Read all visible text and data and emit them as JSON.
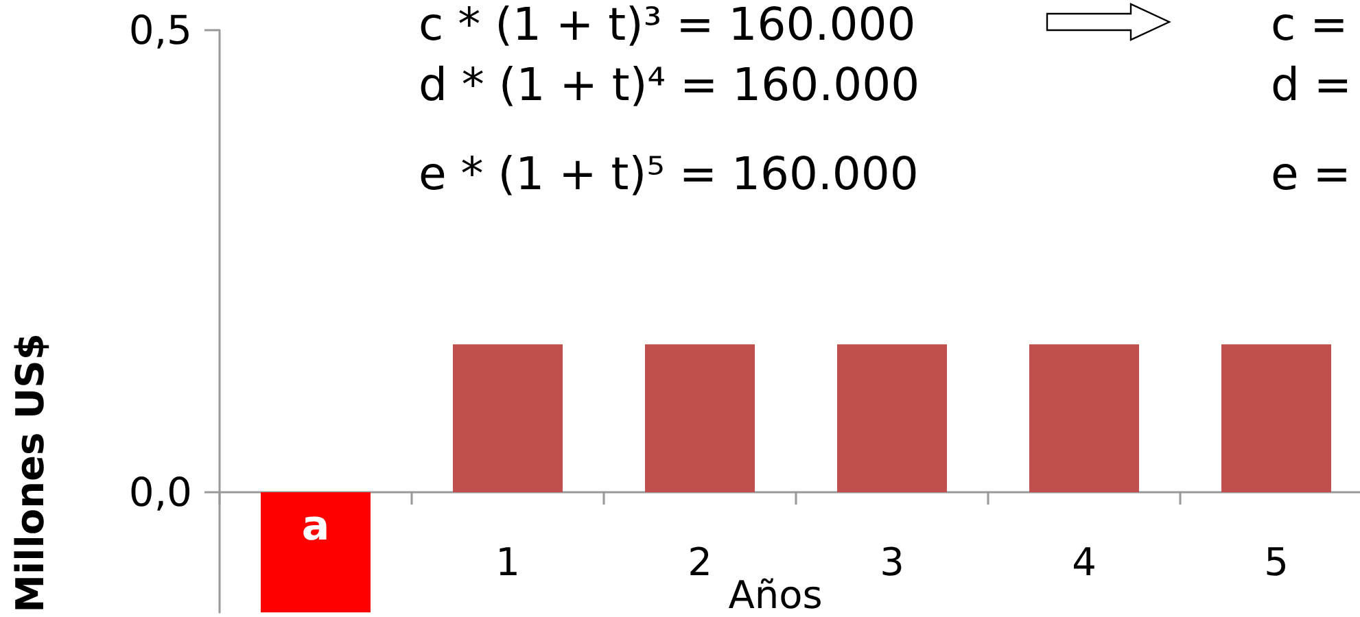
{
  "chart_data": {
    "type": "bar",
    "categories": [
      null,
      "1",
      "2",
      "3",
      "4",
      "5"
    ],
    "values": [
      -0.13,
      0.16,
      0.16,
      0.16,
      0.16,
      0.16
    ],
    "colors": [
      "#ff0000",
      "#c0504d",
      "#c0504d",
      "#c0504d",
      "#c0504d",
      "#c0504d"
    ],
    "value_labels": [
      "a",
      null,
      null,
      null,
      null,
      null
    ],
    "ylim": [
      -0.13,
      0.5
    ],
    "yticks": [
      {
        "value": 0.5,
        "label": "0,5"
      },
      {
        "value": 0,
        "label": "0,0"
      }
    ],
    "xlabel": "Años",
    "ylabel": "Millones US$",
    "annotations": [
      "c * (1 + t)³ = 160.000",
      "c =",
      "d * (1 + t)⁴ = 160.000",
      "d =",
      "e * (1 + t)⁵ = 160.000",
      "e ="
    ]
  }
}
